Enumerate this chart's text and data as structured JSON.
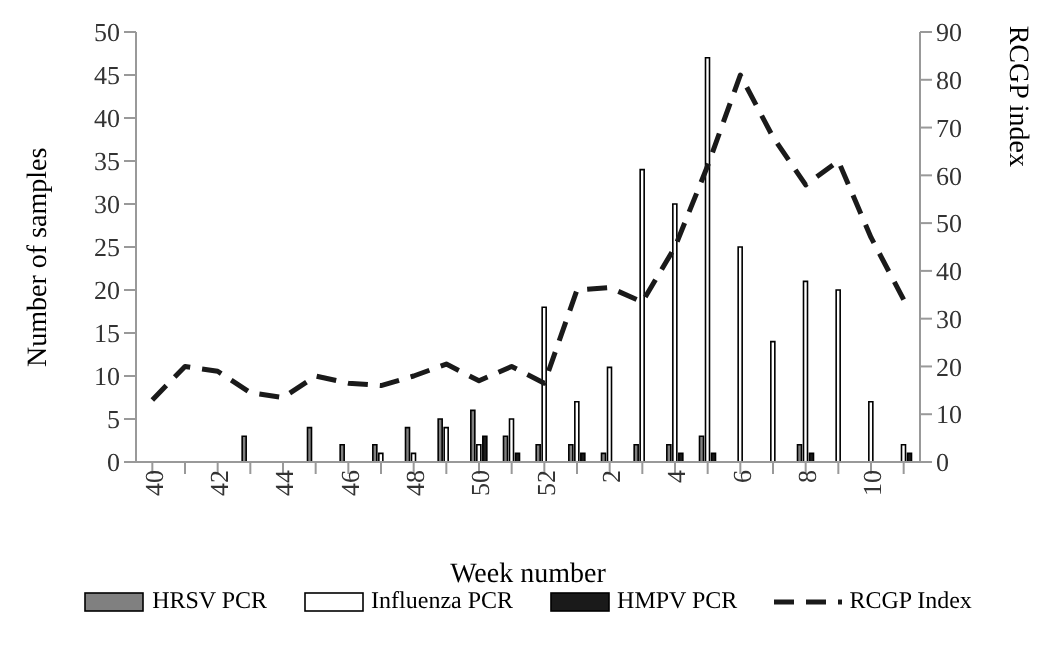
{
  "chart_data": {
    "type": "bar",
    "xlabel": "Week number",
    "ylabel": "Number of samples",
    "y2label": "RCGP index",
    "categories": [
      "40",
      null,
      "42",
      null,
      "44",
      null,
      "46",
      null,
      "48",
      null,
      "50",
      null,
      "52",
      null,
      "2",
      null,
      "4",
      null,
      "6",
      null,
      "8",
      null,
      "10",
      null
    ],
    "series": [
      {
        "name": "HRSV PCR",
        "color": "#808080",
        "values": [
          null,
          null,
          null,
          3,
          null,
          4,
          2,
          2,
          4,
          5,
          6,
          3,
          2,
          2,
          1,
          2,
          2,
          3,
          null,
          null,
          2,
          null,
          null,
          null
        ]
      },
      {
        "name": "Influenza PCR",
        "color": "#ffffff",
        "values": [
          null,
          null,
          null,
          null,
          null,
          null,
          null,
          1,
          1,
          4,
          2,
          5,
          18,
          7,
          11,
          34,
          30,
          47,
          25,
          14,
          21,
          20,
          7,
          2
        ]
      },
      {
        "name": "HMPV PCR",
        "color": "#1a1a1a",
        "values": [
          null,
          null,
          null,
          null,
          null,
          null,
          null,
          null,
          null,
          null,
          3,
          1,
          null,
          1,
          null,
          null,
          1,
          1,
          null,
          null,
          1,
          null,
          null,
          1
        ]
      },
      {
        "name": "RCGP Index",
        "type": "line",
        "axis": "y2",
        "color": "#1a1a1a",
        "line_style": "dashed",
        "values": [
          13,
          20,
          19,
          14.5,
          13.5,
          18,
          16.5,
          16,
          18,
          20.5,
          17,
          20,
          16.5,
          36,
          36.5,
          33.5,
          45,
          62,
          81,
          68,
          58,
          63,
          47,
          34
        ]
      }
    ],
    "ylim": [
      0,
      50
    ],
    "yticks": [
      0,
      5,
      10,
      15,
      20,
      25,
      30,
      35,
      40,
      45,
      50
    ],
    "y2lim": [
      0,
      90
    ],
    "y2ticks": [
      0,
      10,
      20,
      30,
      40,
      50,
      60,
      70,
      80,
      90
    ],
    "grid": false,
    "legend": "bottom",
    "marker": "none"
  }
}
